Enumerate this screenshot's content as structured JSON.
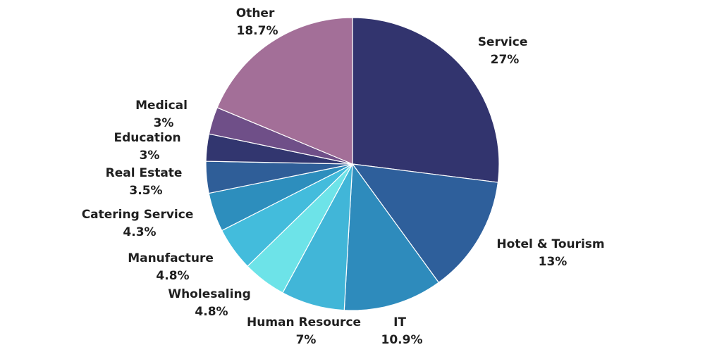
{
  "chart_data": {
    "type": "pie",
    "title": "",
    "start_angle_deg": 0,
    "direction": "clockwise",
    "legend": "none",
    "slices": [
      {
        "label": "Service",
        "value": 27,
        "value_label": "27%",
        "color": "#32346e"
      },
      {
        "label": "Hotel & Tourism",
        "value": 13,
        "value_label": "13%",
        "color": "#2e5f9b"
      },
      {
        "label": "IT",
        "value": 10.9,
        "value_label": "10.9%",
        "color": "#2e8bbc"
      },
      {
        "label": "Human Resource",
        "value": 7,
        "value_label": "7%",
        "color": "#41b6d8"
      },
      {
        "label": "Wholesaling",
        "value": 4.8,
        "value_label": "4.8%",
        "color": "#6de3e8"
      },
      {
        "label": "Manufacture",
        "value": 4.8,
        "value_label": "4.8%",
        "color": "#43bcdc"
      },
      {
        "label": "Catering Service",
        "value": 4.3,
        "value_label": "4.3%",
        "color": "#2d8ebd"
      },
      {
        "label": "Real Estate",
        "value": 3.5,
        "value_label": "3.5%",
        "color": "#2f5e98"
      },
      {
        "label": "Education",
        "value": 3,
        "value_label": "3%",
        "color": "#32366f"
      },
      {
        "label": "Medical",
        "value": 3,
        "value_label": "3%",
        "color": "#6f4f88"
      },
      {
        "label": "Other",
        "value": 18.7,
        "value_label": "18.7%",
        "color": "#a36f98"
      }
    ]
  }
}
